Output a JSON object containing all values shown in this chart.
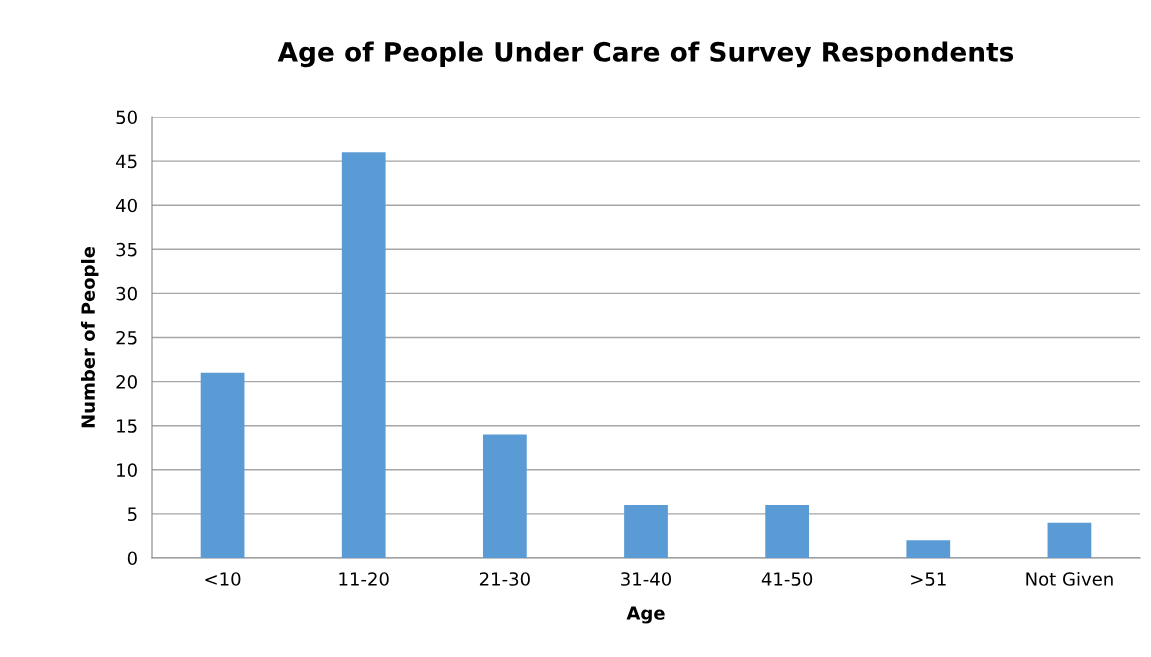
{
  "chart_data": {
    "type": "bar",
    "title": "Age of People Under Care of Survey Respondents",
    "xlabel": "Age",
    "ylabel": "Number of People",
    "categories": [
      "<10",
      "11-20",
      "21-30",
      "31-40",
      "41-50",
      ">51",
      "Not Given"
    ],
    "values": [
      21,
      46,
      14,
      6,
      6,
      2,
      4
    ],
    "color": "#5b9bd5",
    "ylim": [
      0,
      50
    ],
    "yticks": [
      0,
      5,
      10,
      15,
      20,
      25,
      30,
      35,
      40,
      45,
      50
    ],
    "grid": "y",
    "legend": false
  }
}
